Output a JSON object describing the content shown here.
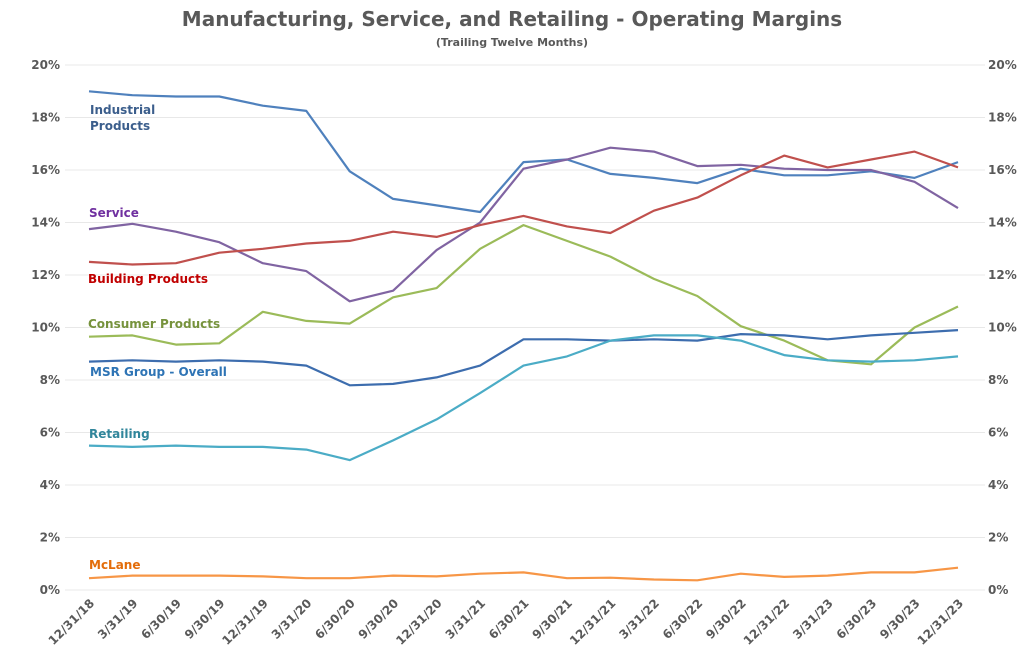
{
  "chart_data": {
    "type": "line",
    "title": "Manufacturing, Service, and Retailing - Operating Margins",
    "subtitle": "(Trailing Twelve Months)",
    "xlabel": "",
    "ylabel": "",
    "ylim": [
      0,
      20
    ],
    "y_ticks": [
      "0%",
      "2%",
      "4%",
      "6%",
      "8%",
      "10%",
      "12%",
      "14%",
      "16%",
      "18%",
      "20%"
    ],
    "y_tick_values": [
      0,
      2,
      4,
      6,
      8,
      10,
      12,
      14,
      16,
      18,
      20
    ],
    "secondary_y_axis": true,
    "grid": true,
    "legend": "inline labels at left",
    "categories": [
      "12/31/18",
      "3/31/19",
      "6/30/19",
      "9/30/19",
      "12/31/19",
      "3/31/20",
      "6/30/20",
      "9/30/20",
      "12/31/20",
      "3/31/21",
      "6/30/21",
      "9/30/21",
      "12/31/21",
      "3/31/22",
      "6/30/22",
      "9/30/22",
      "12/31/22",
      "3/31/23",
      "6/30/23",
      "9/30/23",
      "12/31/23"
    ],
    "series": [
      {
        "name": "Industrial Products",
        "label_lines": [
          "Industrial",
          "Products"
        ],
        "color": "#4F81BD",
        "values": [
          19.0,
          18.85,
          18.8,
          18.8,
          18.45,
          18.25,
          15.95,
          14.9,
          14.65,
          14.4,
          16.3,
          16.4,
          15.85,
          15.7,
          15.5,
          16.05,
          15.8,
          15.8,
          15.95,
          15.7,
          16.3
        ]
      },
      {
        "name": "Service",
        "label_lines": [
          "Service"
        ],
        "color": "#8064A2",
        "values": [
          13.75,
          13.95,
          13.65,
          13.25,
          12.45,
          12.15,
          11.0,
          11.4,
          12.95,
          14.0,
          16.05,
          16.4,
          16.85,
          16.7,
          16.15,
          16.2,
          16.05,
          16.0,
          16.0,
          15.55,
          14.55
        ]
      },
      {
        "name": "Building Products",
        "label_lines": [
          "Building Products"
        ],
        "color": "#C0504D",
        "values": [
          12.5,
          12.4,
          12.45,
          12.85,
          13.0,
          13.2,
          13.3,
          13.65,
          13.45,
          13.9,
          14.25,
          13.85,
          13.6,
          14.45,
          14.95,
          15.8,
          16.55,
          16.1,
          16.4,
          16.7,
          16.1
        ]
      },
      {
        "name": "Consumer Products",
        "label_lines": [
          "Consumer Products"
        ],
        "color": "#9BBB59",
        "values": [
          9.65,
          9.7,
          9.35,
          9.4,
          10.6,
          10.25,
          10.15,
          11.15,
          11.5,
          13.0,
          13.9,
          13.3,
          12.7,
          11.85,
          11.2,
          10.05,
          9.5,
          8.75,
          8.6,
          10.0,
          10.8
        ]
      },
      {
        "name": "MSR Group - Overall",
        "label_lines": [
          "MSR Group - Overall"
        ],
        "color": "#3D6DAE",
        "values": [
          8.7,
          8.75,
          8.7,
          8.75,
          8.7,
          8.55,
          7.8,
          7.85,
          8.1,
          8.55,
          9.55,
          9.55,
          9.5,
          9.55,
          9.5,
          9.75,
          9.7,
          9.55,
          9.7,
          9.8,
          9.9
        ]
      },
      {
        "name": "Retailing",
        "label_lines": [
          "Retailing"
        ],
        "color": "#4BACC6",
        "values": [
          5.5,
          5.45,
          5.5,
          5.45,
          5.45,
          5.35,
          4.95,
          5.7,
          6.5,
          7.5,
          8.55,
          8.9,
          9.5,
          9.7,
          9.7,
          9.5,
          8.95,
          8.75,
          8.7,
          8.75,
          8.9
        ]
      },
      {
        "name": "McLane",
        "label_lines": [
          "McLane"
        ],
        "color": "#F79646",
        "values": [
          0.45,
          0.55,
          0.55,
          0.55,
          0.52,
          0.45,
          0.45,
          0.55,
          0.52,
          0.62,
          0.67,
          0.45,
          0.47,
          0.4,
          0.37,
          0.62,
          0.5,
          0.55,
          0.67,
          0.67,
          0.85
        ]
      }
    ]
  },
  "colors": {
    "title": "#595959",
    "tick": "#595959",
    "grid": "#E8E8E8",
    "label_industrial": "#3B5E8C",
    "label_service": "#7030A0",
    "label_building": "#C00000",
    "label_consumer": "#76923C",
    "label_msr": "#2E74B5",
    "label_retailing": "#31869B",
    "label_mclane": "#E36C09"
  }
}
